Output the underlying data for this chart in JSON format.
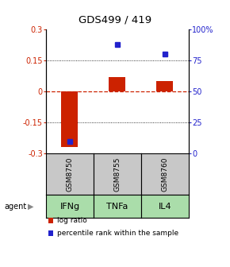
{
  "title": "GDS499 / 419",
  "categories": [
    "IFNg",
    "TNFa",
    "IL4"
  ],
  "sample_ids": [
    "GSM8750",
    "GSM8755",
    "GSM8760"
  ],
  "log_ratios": [
    -0.27,
    0.07,
    0.05
  ],
  "percentile_ranks": [
    10,
    88,
    80
  ],
  "left_ylim": [
    -0.3,
    0.3
  ],
  "right_ylim": [
    0,
    100
  ],
  "left_yticks": [
    -0.3,
    -0.15,
    0,
    0.15,
    0.3
  ],
  "right_yticks": [
    0,
    25,
    50,
    75,
    100
  ],
  "right_yticklabels": [
    "0",
    "25",
    "50",
    "75",
    "100%"
  ],
  "bar_color": "#cc2200",
  "dot_color": "#2222cc",
  "sample_box_color": "#c8c8c8",
  "agent_box_color": "#aaddaa",
  "legend_bar_label": "log ratio",
  "legend_dot_label": "percentile rank within the sample",
  "bar_width": 0.35,
  "agent_label": "agent"
}
